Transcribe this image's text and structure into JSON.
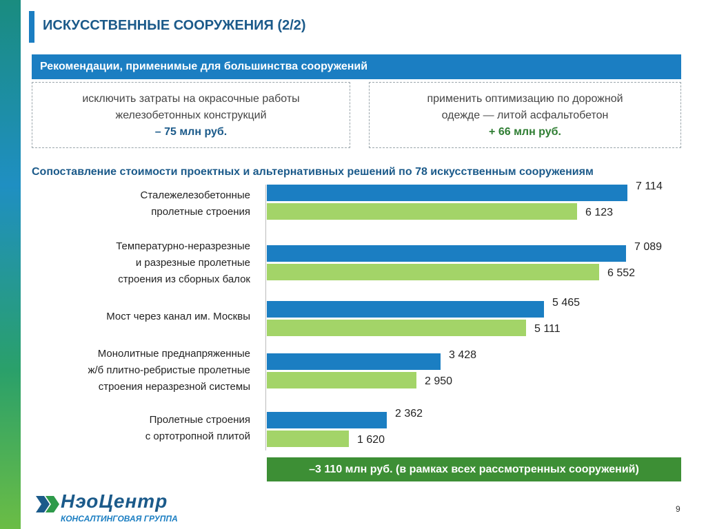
{
  "title": "ИСКУССТВЕННЫЕ СООРУЖЕНИЯ (2/2)",
  "recommendations": {
    "header": "Рекомендации, применимые для большинства сооружений",
    "left": {
      "line1": "исключить затраты на окрасочные работы",
      "line2": "железобетонных конструкций",
      "amount": "– 75 млн руб."
    },
    "right": {
      "line1": "применить оптимизацию по дорожной",
      "line2": "одежде — литой асфальтобетон",
      "amount": "+ 66 млн руб."
    }
  },
  "colors": {
    "project": "#1b7ec2",
    "alternative": "#a3d468",
    "total_bg": "#3d8f35",
    "accent": "#1b5a8a"
  },
  "chart_data": {
    "type": "bar",
    "orientation": "horizontal",
    "title": "Сопоставление стоимости проектных и альтернативных решений по 78 искусственным сооружениям",
    "categories": [
      [
        "Сталежелезобетонные",
        "пролетные строения"
      ],
      [
        "Температурно-неразрезные",
        "и разрезные пролетные",
        "строения из сборных балок"
      ],
      [
        "Мост через канал им. Москвы"
      ],
      [
        "Монолитные преднапряженные",
        "ж/б плитно-ребристые пролетные",
        "строения неразрезной системы"
      ],
      [
        "Пролетные строения",
        "с ортотропной плитой"
      ]
    ],
    "series": [
      {
        "values": [
          7114,
          7089,
          5465,
          3428,
          2362
        ],
        "labels": [
          "7 114",
          "7 089",
          "5 465",
          "3 428",
          "2 362"
        ]
      },
      {
        "values": [
          6123,
          6552,
          5111,
          2950,
          1620
        ],
        "labels": [
          "6 123",
          "6 552",
          "5 111",
          "2 950",
          "1 620"
        ]
      }
    ],
    "xlim": [
      0,
      7114
    ],
    "legend": "none",
    "grid": false
  },
  "total": "–3 110 млн руб. (в рамках всех рассмотренных сооружений)",
  "logo": {
    "name": "НэоЦентр",
    "subtitle": "КОНСАЛТИНГОВАЯ ГРУППА"
  },
  "page_number": "9"
}
